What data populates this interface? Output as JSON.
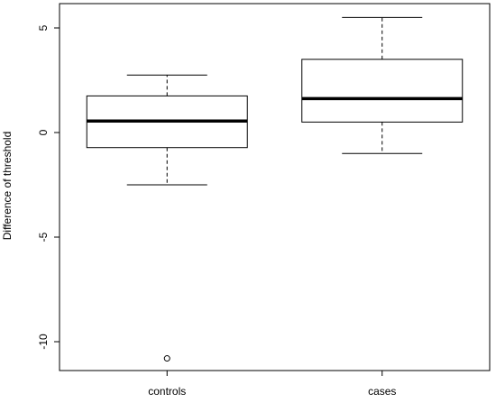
{
  "chart_data": {
    "type": "boxplot",
    "title": "",
    "xlabel": "",
    "ylabel": "Difference of threshold",
    "ylim": [
      -11.3,
      5.8
    ],
    "y_ticks": [
      -10,
      -5,
      0,
      5
    ],
    "y_tick_labels": [
      "-10",
      "-5",
      "0",
      "5"
    ],
    "categories": [
      "controls",
      "cases"
    ],
    "boxes": [
      {
        "name": "controls",
        "whisker_low": -2.5,
        "q1": -0.72,
        "median": 0.55,
        "q3": 1.75,
        "whisker_high": 2.75,
        "outliers": [
          -10.8
        ]
      },
      {
        "name": "cases",
        "whisker_low": -1.0,
        "q1": 0.5,
        "median": 1.62,
        "q3": 3.5,
        "whisker_high": 5.5,
        "outliers": []
      }
    ],
    "grid": false,
    "legend": "none"
  }
}
